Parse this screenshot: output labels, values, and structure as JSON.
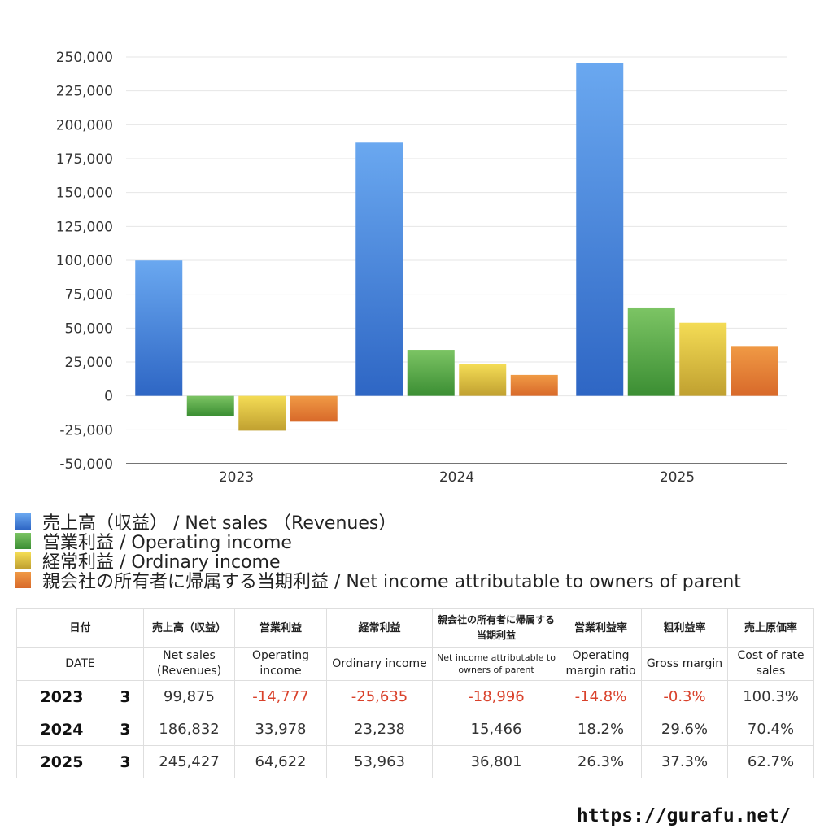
{
  "chart_data": {
    "type": "bar",
    "categories": [
      "2023",
      "2024",
      "2025"
    ],
    "series": [
      {
        "name": "売上高（収益） / Net sales （Revenues）",
        "color": "#3a78d6",
        "values": [
          99875,
          186832,
          245427
        ]
      },
      {
        "name": "営業利益 / Operating income",
        "color": "#4aa040",
        "values": [
          -14777,
          33978,
          64622
        ]
      },
      {
        "name": "経常利益 / Ordinary income",
        "color": "#d8bf3a",
        "values": [
          -25635,
          23238,
          53963
        ]
      },
      {
        "name": "親会社の所有者に帰属する当期利益 / Net income attributable to owners of parent",
        "color": "#e07a30",
        "values": [
          -18996,
          15466,
          36801
        ]
      }
    ],
    "ylim": [
      -50000,
      250000
    ],
    "yticks": [
      "250,000",
      "225,000",
      "200,000",
      "175,000",
      "150,000",
      "125,000",
      "100,000",
      "75,000",
      "50,000",
      "25,000",
      "0",
      "-25,000",
      "-50,000"
    ],
    "grid": true,
    "legend_position": "bottom-left"
  },
  "table": {
    "header1": [
      "日付",
      "売上高（収益）",
      "営業利益",
      "経常利益",
      "親会社の所有者に帰属する当期利益",
      "営業利益率",
      "粗利益率",
      "売上原価率"
    ],
    "header2": [
      "DATE",
      "Net sales (Revenues)",
      "Operating income",
      "Ordinary income",
      "Net income attributable to owners of parent",
      "Operating margin ratio",
      "Gross margin",
      "Cost of rate sales"
    ],
    "rows": [
      {
        "year": "2023",
        "month": "3",
        "values": [
          "99,875",
          "-14,777",
          "-25,635",
          "-18,996",
          "-14.8%",
          "-0.3%",
          "100.3%"
        ]
      },
      {
        "year": "2024",
        "month": "3",
        "values": [
          "186,832",
          "33,978",
          "23,238",
          "15,466",
          "18.2%",
          "29.6%",
          "70.4%"
        ]
      },
      {
        "year": "2025",
        "month": "3",
        "values": [
          "245,427",
          "64,622",
          "53,963",
          "36,801",
          "26.3%",
          "37.3%",
          "62.7%"
        ]
      }
    ]
  },
  "site": {
    "url": "https://gurafu.net/"
  }
}
